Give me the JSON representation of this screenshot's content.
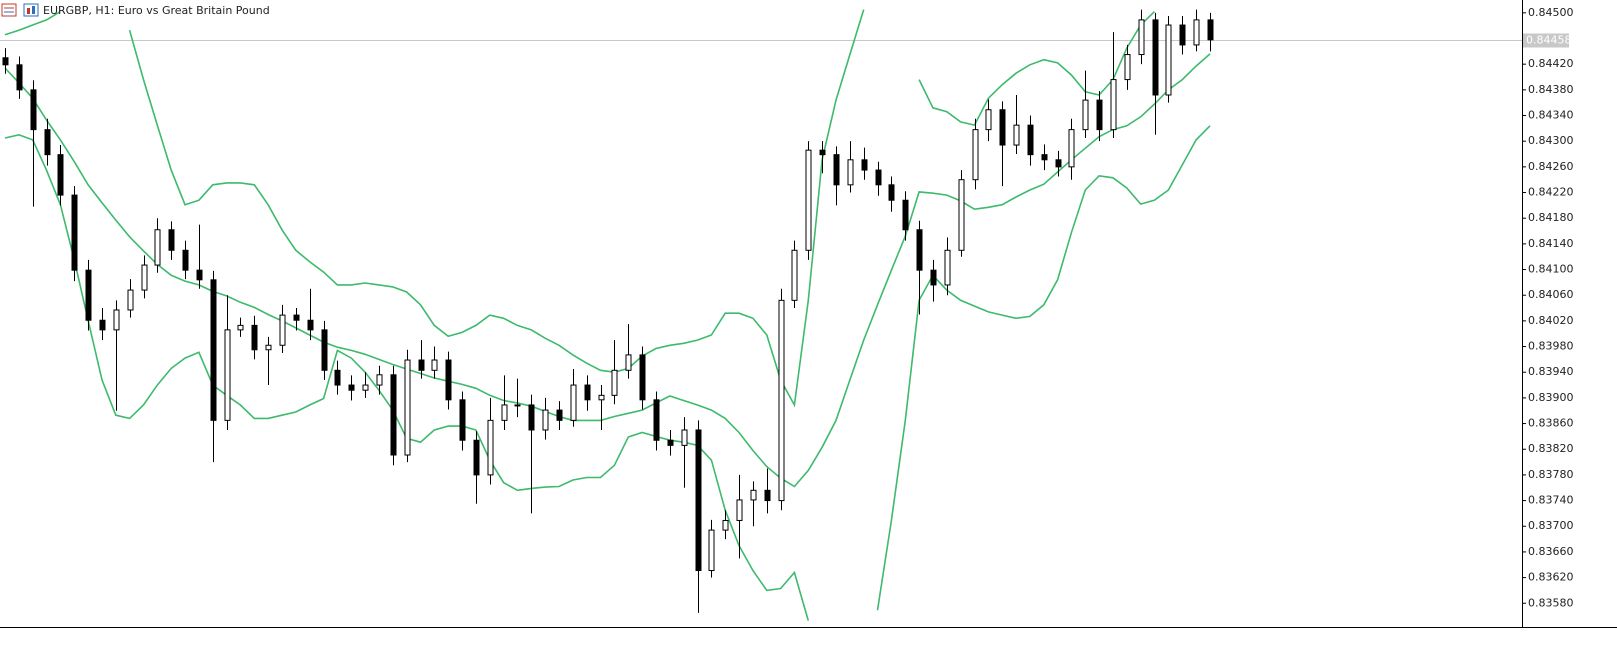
{
  "chart_data": {
    "type": "candlestick",
    "title": "EURGBP, H1:  Euro vs Great Britain Pound",
    "up_color": "#ffffff",
    "down_color": "#000000",
    "ylim": [
      0.83543,
      0.8452
    ],
    "yticks": [
      {
        "value": 0.8358,
        "label": "0.83580"
      },
      {
        "value": 0.8362,
        "label": "0.83620"
      },
      {
        "value": 0.8366,
        "label": "0.83660"
      },
      {
        "value": 0.837,
        "label": "0.83700"
      },
      {
        "value": 0.8374,
        "label": "0.83740"
      },
      {
        "value": 0.8378,
        "label": "0.83780"
      },
      {
        "value": 0.8382,
        "label": "0.83820"
      },
      {
        "value": 0.8386,
        "label": "0.83860"
      },
      {
        "value": 0.839,
        "label": "0.83900"
      },
      {
        "value": 0.8394,
        "label": "0.83940"
      },
      {
        "value": 0.8398,
        "label": "0.83980"
      },
      {
        "value": 0.8402,
        "label": "0.84020"
      },
      {
        "value": 0.8406,
        "label": "0.84060"
      },
      {
        "value": 0.841,
        "label": "0.84100"
      },
      {
        "value": 0.8414,
        "label": "0.84140"
      },
      {
        "value": 0.8418,
        "label": "0.84180"
      },
      {
        "value": 0.8422,
        "label": "0.84220"
      },
      {
        "value": 0.8426,
        "label": "0.84260"
      },
      {
        "value": 0.843,
        "label": "0.84300"
      },
      {
        "value": 0.8434,
        "label": "0.84340"
      },
      {
        "value": 0.8438,
        "label": "0.84380"
      },
      {
        "value": 0.8442,
        "label": "0.84420"
      },
      {
        "value": 0.845,
        "label": "0.84500"
      }
    ],
    "current_price": {
      "value": 0.84458,
      "label": "0.84458"
    },
    "candles": [
      [
        0.8443,
        0.84445,
        0.84405,
        0.84419
      ],
      [
        0.84419,
        0.84432,
        0.84366,
        0.8438
      ],
      [
        0.8438,
        0.84395,
        0.84198,
        0.84318
      ],
      [
        0.84318,
        0.84335,
        0.84262,
        0.84279
      ],
      [
        0.84279,
        0.84294,
        0.842,
        0.84216
      ],
      [
        0.84216,
        0.8423,
        0.84082,
        0.84099
      ],
      [
        0.84099,
        0.84115,
        0.84005,
        0.84021
      ],
      [
        0.84021,
        0.8404,
        0.8399,
        0.84006
      ],
      [
        0.84006,
        0.84052,
        0.8388,
        0.84037
      ],
      [
        0.84037,
        0.84085,
        0.84025,
        0.84068
      ],
      [
        0.84068,
        0.84122,
        0.84055,
        0.84107
      ],
      [
        0.84107,
        0.8418,
        0.84095,
        0.84162
      ],
      [
        0.84162,
        0.84175,
        0.84115,
        0.8413
      ],
      [
        0.8413,
        0.84145,
        0.84085,
        0.84099
      ],
      [
        0.84099,
        0.8417,
        0.8407,
        0.84084
      ],
      [
        0.84084,
        0.84098,
        0.838,
        0.83865
      ],
      [
        0.83865,
        0.8406,
        0.8385,
        0.84006
      ],
      [
        0.84006,
        0.84025,
        0.83995,
        0.84013
      ],
      [
        0.84013,
        0.84028,
        0.8396,
        0.83975
      ],
      [
        0.83975,
        0.83995,
        0.8392,
        0.83982
      ],
      [
        0.83982,
        0.84045,
        0.8397,
        0.84029
      ],
      [
        0.84029,
        0.8404,
        0.84005,
        0.84021
      ],
      [
        0.84021,
        0.8407,
        0.8399,
        0.84006
      ],
      [
        0.84006,
        0.8402,
        0.83928,
        0.83943
      ],
      [
        0.83943,
        0.83958,
        0.83905,
        0.8392
      ],
      [
        0.8392,
        0.83935,
        0.83896,
        0.83912
      ],
      [
        0.83912,
        0.8394,
        0.839,
        0.8392
      ],
      [
        0.8392,
        0.8395,
        0.83905,
        0.83936
      ],
      [
        0.83936,
        0.8395,
        0.83795,
        0.83811
      ],
      [
        0.83811,
        0.83975,
        0.838,
        0.83959
      ],
      [
        0.83959,
        0.8399,
        0.8393,
        0.83943
      ],
      [
        0.83943,
        0.8398,
        0.8393,
        0.83959
      ],
      [
        0.83959,
        0.83972,
        0.83882,
        0.83897
      ],
      [
        0.83897,
        0.8391,
        0.83818,
        0.83834
      ],
      [
        0.83834,
        0.83848,
        0.83735,
        0.8378
      ],
      [
        0.8378,
        0.839,
        0.83765,
        0.83865
      ],
      [
        0.83865,
        0.83935,
        0.8385,
        0.83889
      ],
      [
        0.83889,
        0.8393,
        0.8387,
        0.83889
      ],
      [
        0.83889,
        0.83905,
        0.8372,
        0.8385
      ],
      [
        0.8385,
        0.839,
        0.83835,
        0.83881
      ],
      [
        0.83881,
        0.83895,
        0.8385,
        0.83865
      ],
      [
        0.83865,
        0.83945,
        0.83855,
        0.8392
      ],
      [
        0.8392,
        0.83935,
        0.8388,
        0.83897
      ],
      [
        0.83897,
        0.8392,
        0.8385,
        0.83904
      ],
      [
        0.83904,
        0.8399,
        0.8389,
        0.83943
      ],
      [
        0.83943,
        0.84015,
        0.8393,
        0.83967
      ],
      [
        0.83967,
        0.8398,
        0.83882,
        0.83897
      ],
      [
        0.83897,
        0.8391,
        0.83818,
        0.83834
      ],
      [
        0.83834,
        0.8385,
        0.8381,
        0.83826
      ],
      [
        0.83826,
        0.8387,
        0.8376,
        0.8385
      ],
      [
        0.8385,
        0.83865,
        0.83565,
        0.83631
      ],
      [
        0.83631,
        0.8371,
        0.8362,
        0.83694
      ],
      [
        0.83694,
        0.83725,
        0.8368,
        0.83709
      ],
      [
        0.83709,
        0.8378,
        0.8365,
        0.83741
      ],
      [
        0.83741,
        0.8377,
        0.837,
        0.83756
      ],
      [
        0.83756,
        0.8379,
        0.8372,
        0.8374
      ],
      [
        0.8374,
        0.8407,
        0.83725,
        0.84052
      ],
      [
        0.84052,
        0.84145,
        0.8404,
        0.8413
      ],
      [
        0.8413,
        0.843,
        0.84115,
        0.84286
      ],
      [
        0.84286,
        0.843,
        0.8425,
        0.84279
      ],
      [
        0.84279,
        0.84292,
        0.842,
        0.84232
      ],
      [
        0.84232,
        0.843,
        0.8422,
        0.84271
      ],
      [
        0.84271,
        0.8429,
        0.8424,
        0.84255
      ],
      [
        0.84255,
        0.84268,
        0.84215,
        0.84232
      ],
      [
        0.84232,
        0.84245,
        0.8419,
        0.84208
      ],
      [
        0.84208,
        0.84222,
        0.84145,
        0.84162
      ],
      [
        0.84162,
        0.84176,
        0.8403,
        0.84099
      ],
      [
        0.84099,
        0.84115,
        0.8405,
        0.84076
      ],
      [
        0.84076,
        0.8415,
        0.8406,
        0.8413
      ],
      [
        0.8413,
        0.84255,
        0.8412,
        0.8424
      ],
      [
        0.8424,
        0.84335,
        0.84225,
        0.84318
      ],
      [
        0.84318,
        0.84365,
        0.843,
        0.84349
      ],
      [
        0.84349,
        0.84362,
        0.8423,
        0.84294
      ],
      [
        0.84294,
        0.84372,
        0.8428,
        0.84325
      ],
      [
        0.84325,
        0.8434,
        0.84262,
        0.84279
      ],
      [
        0.84279,
        0.84295,
        0.84255,
        0.84271
      ],
      [
        0.84271,
        0.84285,
        0.84245,
        0.8426
      ],
      [
        0.8426,
        0.84335,
        0.8424,
        0.84318
      ],
      [
        0.84318,
        0.8441,
        0.84305,
        0.84364
      ],
      [
        0.84364,
        0.84378,
        0.843,
        0.84318
      ],
      [
        0.84318,
        0.8447,
        0.84305,
        0.84396
      ],
      [
        0.84396,
        0.8445,
        0.8438,
        0.84435
      ],
      [
        0.84435,
        0.84505,
        0.8442,
        0.84489
      ],
      [
        0.84489,
        0.845,
        0.8431,
        0.84372
      ],
      [
        0.84372,
        0.84495,
        0.8436,
        0.84481
      ],
      [
        0.84481,
        0.84495,
        0.84435,
        0.8445
      ],
      [
        0.8445,
        0.84505,
        0.8444,
        0.84489
      ],
      [
        0.84489,
        0.845,
        0.8444,
        0.84458
      ]
    ],
    "lines": [
      {
        "color": "#3dba6c",
        "values": [
          0.84466,
          0.84473,
          0.84481,
          0.84489,
          0.84502,
          null,
          null,
          null,
          null,
          0.84473,
          0.84396,
          0.84325,
          0.84255,
          0.84201,
          0.84208,
          0.84232,
          0.84235,
          0.84235,
          0.84232,
          0.84201,
          0.84162,
          0.8413,
          0.84112,
          0.84096,
          0.84076,
          0.84076,
          0.84079,
          0.84076,
          0.84073,
          0.84065,
          0.84045,
          0.84013,
          0.83996,
          0.84002,
          0.84013,
          0.84029,
          0.84024,
          0.84013,
          0.84006,
          0.83993,
          0.83982,
          0.83967,
          0.83954,
          0.83943,
          0.8394,
          0.83946,
          0.83965,
          0.83977,
          0.83982,
          0.83985,
          0.8399,
          0.83998,
          0.84032,
          0.84032,
          0.84024,
          0.83998,
          0.83928,
          0.83889,
          0.84052,
          0.84271,
          0.84364,
          0.84435,
          0.84505,
          null,
          null,
          null,
          0.84396,
          0.84352,
          0.84346,
          0.8433,
          0.84325,
          0.84367,
          0.84388,
          0.84406,
          0.84419,
          0.84427,
          0.84422,
          0.84403,
          0.84377,
          0.84372,
          0.84396,
          0.84445,
          0.84481,
          0.84502,
          null,
          null,
          null,
          null
        ]
      },
      {
        "color": "#3dba6c",
        "values": [
          0.84414,
          0.84391,
          0.84367,
          0.84333,
          0.84302,
          0.84268,
          0.84232,
          0.84204,
          0.84177,
          0.84151,
          0.84129,
          0.84108,
          0.84091,
          0.84082,
          0.84076,
          0.84066,
          0.84059,
          0.84049,
          0.84041,
          0.8403,
          0.8402,
          0.84009,
          0.83998,
          0.83987,
          0.83979,
          0.83974,
          0.83968,
          0.8396,
          0.83952,
          0.83945,
          0.83938,
          0.83931,
          0.83926,
          0.83921,
          0.83915,
          0.83904,
          0.83896,
          0.83892,
          0.83887,
          0.83879,
          0.83871,
          0.83865,
          0.83865,
          0.83865,
          0.83871,
          0.83876,
          0.83881,
          0.83892,
          0.83903,
          0.83896,
          0.83889,
          0.83881,
          0.83868,
          0.83846,
          0.83818,
          0.83793,
          0.83775,
          0.83762,
          0.83787,
          0.83823,
          0.83865,
          0.83928,
          0.8399,
          0.84045,
          0.84099,
          0.84152,
          0.84221,
          0.84219,
          0.84216,
          0.84207,
          0.84194,
          0.84197,
          0.84201,
          0.84213,
          0.84224,
          0.84233,
          0.84252,
          0.84271,
          0.84289,
          0.84307,
          0.84318,
          0.84324,
          0.84338,
          0.84358,
          0.8438,
          0.84396,
          0.84417,
          0.84436
        ]
      },
      {
        "color": "#3dba6c",
        "values": [
          0.84305,
          0.8431,
          0.84302,
          0.84255,
          0.84201,
          0.84115,
          0.84021,
          0.83928,
          0.83873,
          0.83868,
          0.83889,
          0.8392,
          0.83946,
          0.83962,
          0.83971,
          0.8392,
          0.83904,
          0.83889,
          0.83868,
          0.83868,
          0.83873,
          0.83878,
          0.83889,
          0.83899,
          0.83974,
          0.83962,
          0.8394,
          0.83912,
          0.83881,
          0.83837,
          0.83831,
          0.8385,
          0.83856,
          0.83856,
          0.8385,
          0.83803,
          0.83768,
          0.83756,
          0.83759,
          0.83761,
          0.83762,
          0.83772,
          0.83776,
          0.83776,
          0.83795,
          0.83839,
          0.83846,
          0.8384,
          0.83834,
          0.83831,
          0.83826,
          0.83803,
          0.83725,
          0.8367,
          0.83631,
          0.836,
          0.83603,
          0.83628,
          0.83553,
          null,
          null,
          null,
          null,
          0.83569,
          0.83709,
          0.83865,
          0.84052,
          0.84091,
          0.84068,
          0.84052,
          0.84043,
          0.84034,
          0.84029,
          0.84024,
          0.84027,
          0.84045,
          0.84084,
          0.84158,
          0.84224,
          0.84246,
          0.84243,
          0.84227,
          0.84202,
          0.84208,
          0.84224,
          0.84263,
          0.84302,
          0.84324
        ]
      }
    ]
  }
}
